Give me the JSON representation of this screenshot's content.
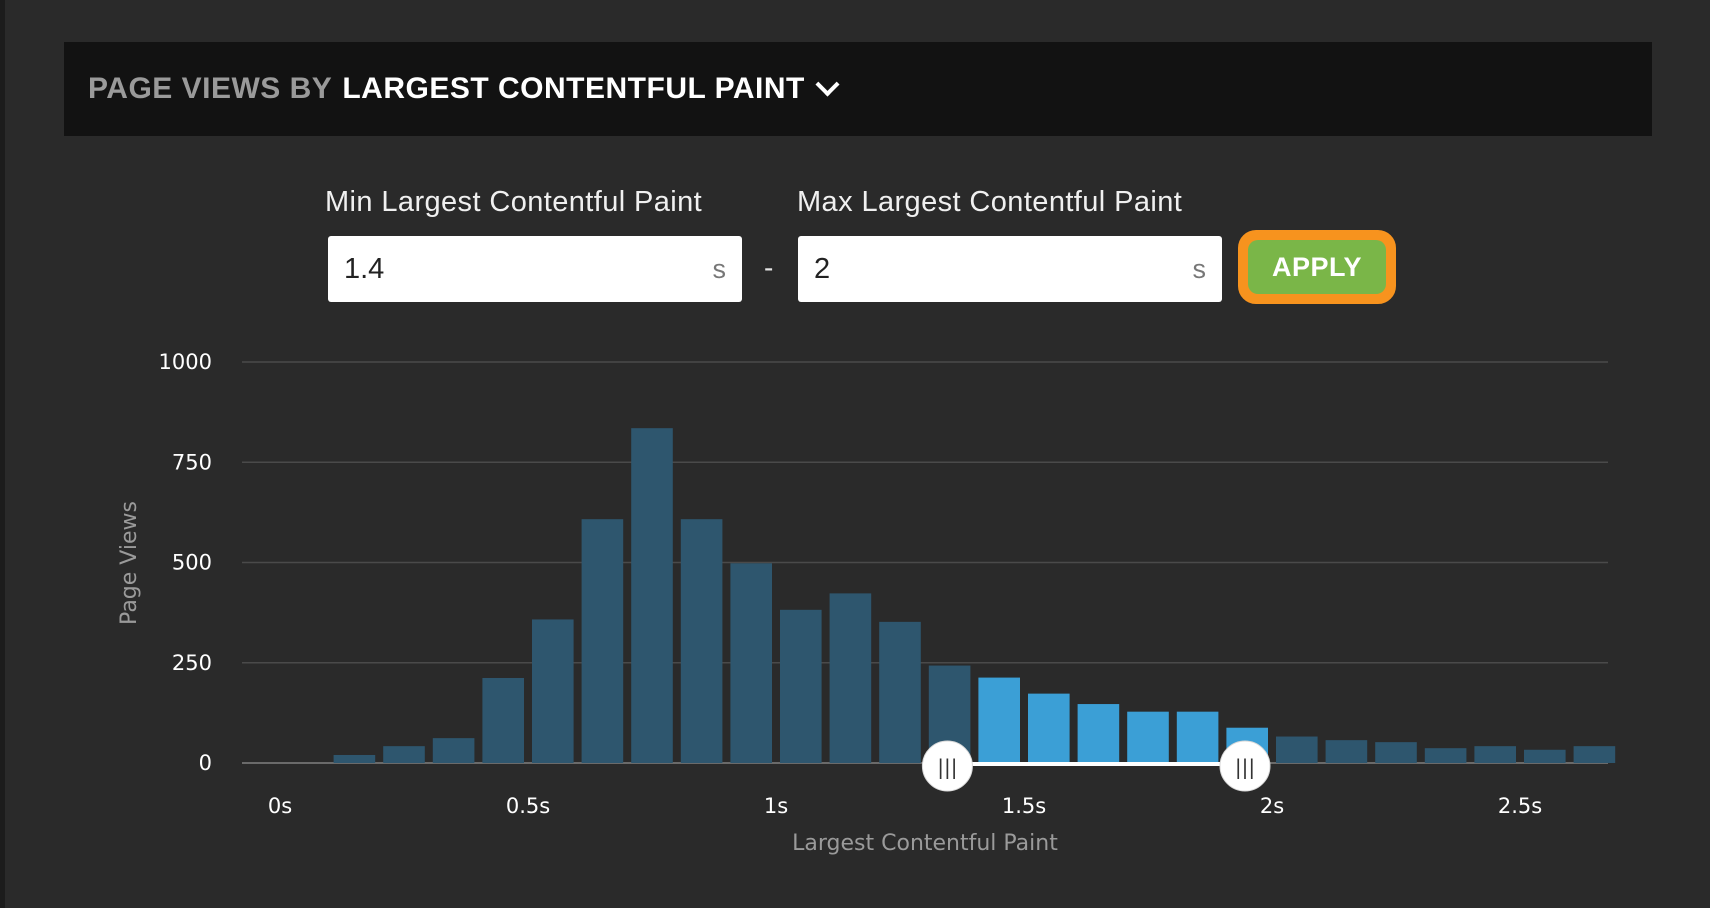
{
  "header": {
    "prefix": "PAGE VIEWS BY",
    "metric": "LARGEST CONTENTFUL PAINT"
  },
  "filter": {
    "min_label": "Min Largest Contentful Paint",
    "min_value": "1.4",
    "max_label": "Max Largest Contentful Paint",
    "max_value": "2",
    "unit": "s",
    "separator": "-",
    "apply_label": "APPLY"
  },
  "colors": {
    "bar": "#2e566e",
    "bar_selected": "#3b9fd6",
    "apply_bg": "#7ab648",
    "apply_border": "#f7931e",
    "header_bg": "#121212",
    "page_bg": "#2a2a2a"
  },
  "chart_data": {
    "type": "bar",
    "xlabel": "Largest Contentful Paint",
    "ylabel": "Page Views",
    "ylim": [
      0,
      1000
    ],
    "yticks": [
      0,
      250,
      500,
      750,
      1000
    ],
    "xticks": [
      {
        "value": 0,
        "label": "0s"
      },
      {
        "value": 0.5,
        "label": "0.5s"
      },
      {
        "value": 1,
        "label": "1s"
      },
      {
        "value": 1.5,
        "label": "1.5s"
      },
      {
        "value": 2,
        "label": "2s"
      },
      {
        "value": 2.5,
        "label": "2.5s"
      }
    ],
    "bin_width": 0.1,
    "bins": [
      {
        "x": 0.0,
        "value": 0
      },
      {
        "x": 0.1,
        "value": 20
      },
      {
        "x": 0.2,
        "value": 42
      },
      {
        "x": 0.3,
        "value": 62
      },
      {
        "x": 0.4,
        "value": 212
      },
      {
        "x": 0.5,
        "value": 358
      },
      {
        "x": 0.6,
        "value": 608
      },
      {
        "x": 0.7,
        "value": 835
      },
      {
        "x": 0.8,
        "value": 608
      },
      {
        "x": 0.9,
        "value": 498
      },
      {
        "x": 1.0,
        "value": 382
      },
      {
        "x": 1.1,
        "value": 423
      },
      {
        "x": 1.2,
        "value": 352
      },
      {
        "x": 1.3,
        "value": 243
      },
      {
        "x": 1.4,
        "value": 213
      },
      {
        "x": 1.5,
        "value": 173
      },
      {
        "x": 1.6,
        "value": 147
      },
      {
        "x": 1.7,
        "value": 128
      },
      {
        "x": 1.8,
        "value": 128
      },
      {
        "x": 1.9,
        "value": 88
      },
      {
        "x": 2.0,
        "value": 66
      },
      {
        "x": 2.1,
        "value": 57
      },
      {
        "x": 2.2,
        "value": 52
      },
      {
        "x": 2.3,
        "value": 37
      },
      {
        "x": 2.4,
        "value": 42
      },
      {
        "x": 2.5,
        "value": 33
      },
      {
        "x": 2.6,
        "value": 42
      }
    ],
    "selection": {
      "min": 1.4,
      "max": 2.0
    },
    "grid": true,
    "handle_glyph": "|||"
  }
}
